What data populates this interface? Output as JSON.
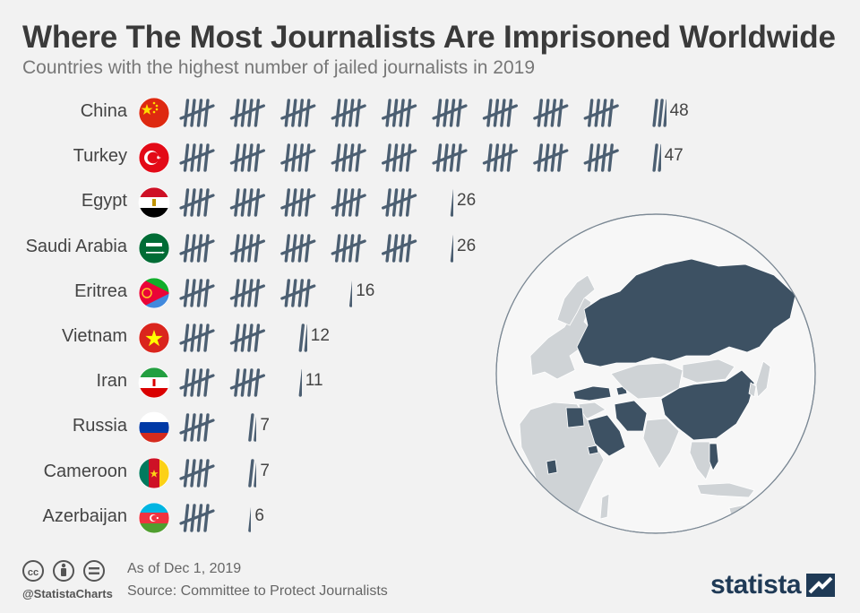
{
  "header": {
    "title": "Where The Most Journalists Are Imprisoned Worldwide",
    "subtitle": "Countries with the highest number of jailed journalists in 2019"
  },
  "chart_data": {
    "type": "bar",
    "title": "Where The Most Journalists Are Imprisoned Worldwide",
    "subtitle": "Countries with the highest number of jailed journalists in 2019",
    "categories": [
      "China",
      "Turkey",
      "Egypt",
      "Saudi Arabia",
      "Eritrea",
      "Vietnam",
      "Iran",
      "Russia",
      "Cameroon",
      "Azerbaijan"
    ],
    "values": [
      48,
      47,
      26,
      26,
      16,
      12,
      11,
      7,
      7,
      6
    ],
    "flags": [
      "china-flag-icon",
      "turkey-flag-icon",
      "egypt-flag-icon",
      "saudi-arabia-flag-icon",
      "eritrea-flag-icon",
      "vietnam-flag-icon",
      "iran-flag-icon",
      "russia-flag-icon",
      "cameroon-flag-icon",
      "azerbaijan-flag-icon"
    ],
    "mark_color": "#4c5f72",
    "highlight_color": "#3d5163",
    "land_color": "#cfd3d6"
  },
  "footer": {
    "handle": "@StatistaCharts",
    "as_of": "As of Dec 1, 2019",
    "source": "Source: Committee to Protect Journalists",
    "brand": "statista",
    "icons": [
      "creative-commons-icon",
      "attribution-icon",
      "no-derivatives-icon"
    ]
  }
}
